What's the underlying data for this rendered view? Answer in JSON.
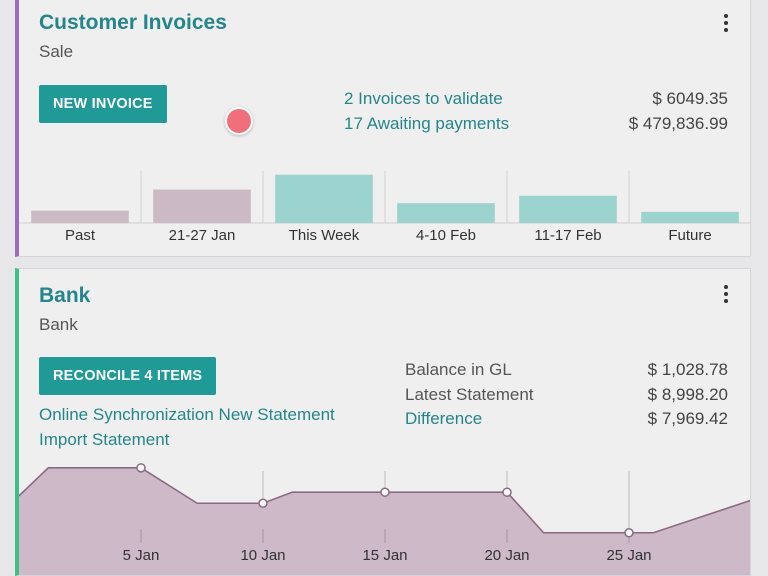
{
  "invoices": {
    "title": "Customer Invoices",
    "subtitle": "Sale",
    "button": "NEW INVOICE",
    "links": [
      "2 Invoices to validate",
      "17 Awaiting payments"
    ],
    "amounts": [
      "$ 6049.35",
      "$ 479,836.99"
    ],
    "accent": "#9b6bc1"
  },
  "bank": {
    "title": "Bank",
    "subtitle": "Bank",
    "button": "RECONCILE 4 ITEMS",
    "links": [
      "Online Synchronization New Statement",
      "Import Statement"
    ],
    "labels": [
      "Balance in GL",
      "Latest Statement"
    ],
    "difference_label": "Difference",
    "amounts": [
      "$ 1,028.78",
      "$ 8,998.20",
      "$ 7,969.42"
    ],
    "accent": "#3dbf86"
  },
  "colors": {
    "primary": "#1f9a96",
    "link": "#24868a",
    "bar_past": "#cbb9c3",
    "bar_future": "#9bd3ce",
    "line_fill": "#cdb9c7",
    "line_stroke": "#8a6a83"
  },
  "chart_data": [
    {
      "type": "bar",
      "categories": [
        "Past",
        "21-27 Jan",
        "This Week",
        "4-10 Feb",
        "11-17 Feb",
        "Future"
      ],
      "values": [
        1.0,
        2.7,
        3.9,
        1.6,
        2.2,
        0.9
      ],
      "ylim": [
        0,
        4.2
      ],
      "grid": true
    },
    {
      "type": "area",
      "x_ticks": [
        "5 Jan",
        "10 Jan",
        "15 Jan",
        "20 Jan",
        "25 Jan"
      ],
      "x": [
        0,
        1.2,
        5,
        7.3,
        10,
        11.2,
        13.3,
        15,
        20,
        21.5,
        25,
        26,
        30
      ],
      "y": [
        1.1,
        1.48,
        1.48,
        1.0,
        1.0,
        1.15,
        1.15,
        1.15,
        1.15,
        0.6,
        0.6,
        0.6,
        1.04
      ],
      "markers_x": [
        5,
        10,
        15,
        20,
        25
      ],
      "ylim": [
        0,
        1.6
      ],
      "grid": true
    }
  ]
}
